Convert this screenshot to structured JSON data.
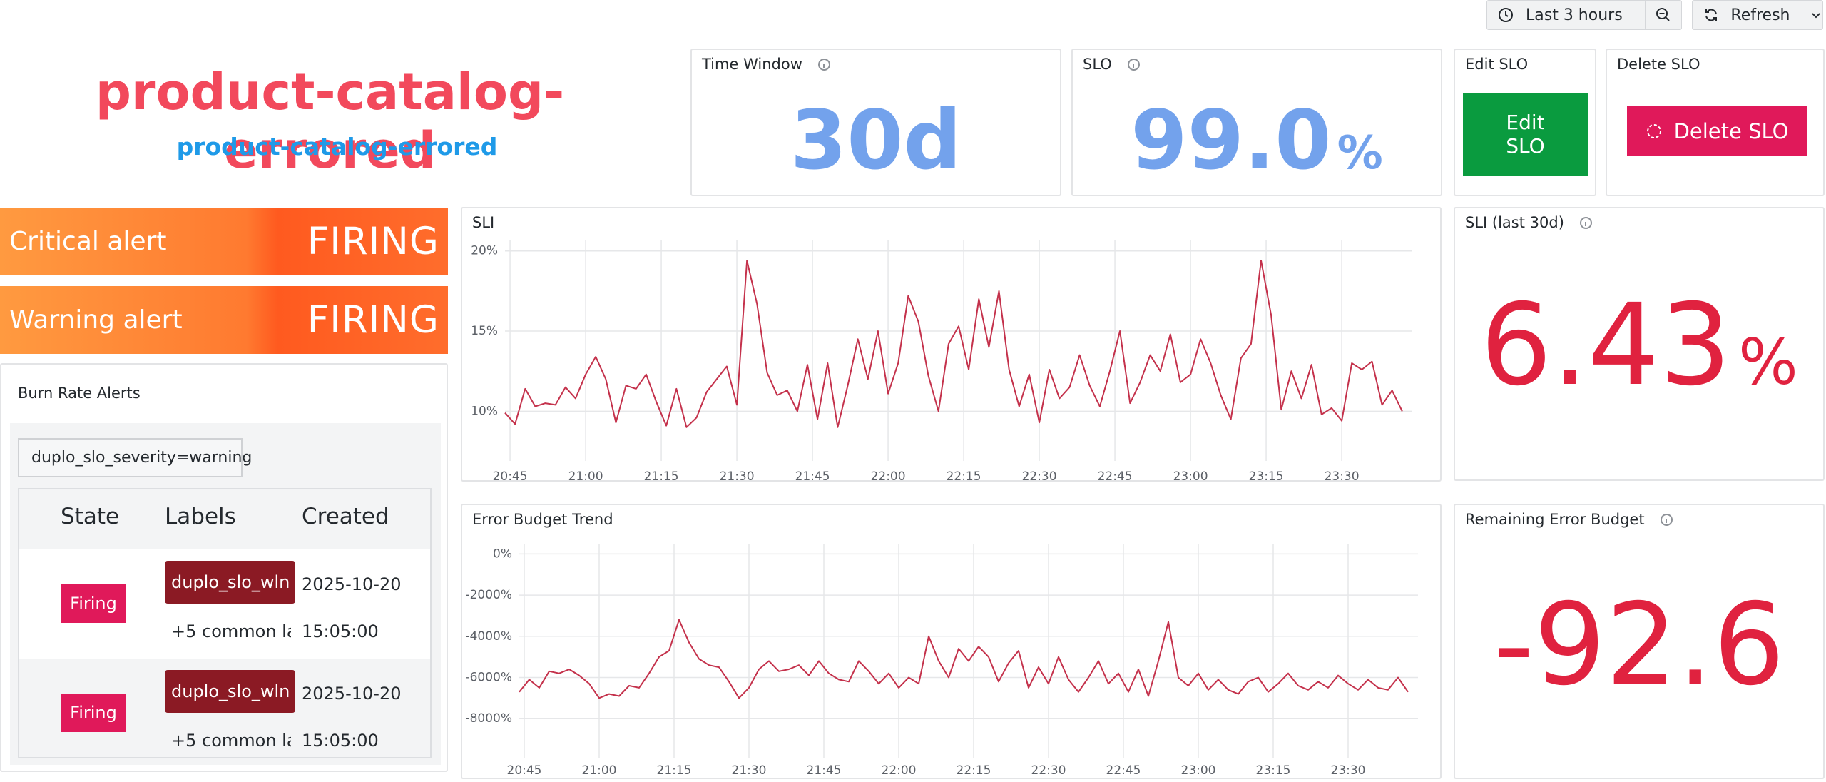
{
  "toolbar": {
    "time_range": "Last 3 hours",
    "refresh": "Refresh"
  },
  "header": {
    "title": "product-catalog-errored",
    "subtitle": "product-catalog-errored"
  },
  "stats": {
    "time_window": {
      "title": "Time Window",
      "value": "30d"
    },
    "slo": {
      "title": "SLO",
      "value": "99.0",
      "unit": "%"
    },
    "sli_30d": {
      "title": "SLI (last 30d)",
      "value": "6.43",
      "unit": "%"
    },
    "remaining_budget": {
      "title": "Remaining Error Budget",
      "value": "-92.6"
    }
  },
  "actions": {
    "edit": {
      "title": "Edit SLO",
      "button": "Edit SLO"
    },
    "delete": {
      "title": "Delete SLO",
      "button": "Delete SLO"
    }
  },
  "alerts": [
    {
      "label": "Critical alert",
      "status": "FIRING"
    },
    {
      "label": "Warning alert",
      "status": "FIRING"
    }
  ],
  "burn_rate": {
    "title": "Burn Rate Alerts",
    "filter": "duplo_slo_severity=warning",
    "columns": [
      "State",
      "Labels",
      "Created"
    ],
    "rows": [
      {
        "state": "Firing",
        "label": "duplo_slo_wln",
        "extra": "+5 common la",
        "date": "2025-10-20",
        "time": "15:05:00"
      },
      {
        "state": "Firing",
        "label": "duplo_slo_wln",
        "extra": "+5 common la",
        "date": "2025-10-20",
        "time": "15:05:00"
      }
    ]
  },
  "chart_data": [
    {
      "type": "line",
      "title": "SLI",
      "x": [
        "20:44",
        "20:46",
        "20:48",
        "20:50",
        "20:52",
        "20:54",
        "20:56",
        "20:58",
        "21:00",
        "21:02",
        "21:04",
        "21:06",
        "21:08",
        "21:10",
        "21:12",
        "21:14",
        "21:16",
        "21:18",
        "21:20",
        "21:22",
        "21:24",
        "21:26",
        "21:28",
        "21:30",
        "21:32",
        "21:34",
        "21:36",
        "21:38",
        "21:40",
        "21:42",
        "21:44",
        "21:46",
        "21:48",
        "21:50",
        "21:52",
        "21:54",
        "21:56",
        "21:58",
        "22:00",
        "22:02",
        "22:04",
        "22:06",
        "22:08",
        "22:10",
        "22:12",
        "22:14",
        "22:16",
        "22:18",
        "22:20",
        "22:22",
        "22:24",
        "22:26",
        "22:28",
        "22:30",
        "22:32",
        "22:34",
        "22:36",
        "22:38",
        "22:40",
        "22:42",
        "22:44",
        "22:46",
        "22:48",
        "22:50",
        "22:52",
        "22:54",
        "22:56",
        "22:58",
        "23:00",
        "23:02",
        "23:04",
        "23:06",
        "23:08",
        "23:10",
        "23:12",
        "23:14",
        "23:16",
        "23:18",
        "23:20",
        "23:22",
        "23:24",
        "23:26",
        "23:28",
        "23:30",
        "23:32",
        "23:34",
        "23:36",
        "23:38",
        "23:40",
        "23:42"
      ],
      "values": [
        9.9,
        9.2,
        11.4,
        10.3,
        10.5,
        10.4,
        11.5,
        10.8,
        12.3,
        13.4,
        12.0,
        9.3,
        11.6,
        11.4,
        12.3,
        10.6,
        9.1,
        11.4,
        9.0,
        9.6,
        11.2,
        12.0,
        12.8,
        10.4,
        19.4,
        16.7,
        12.4,
        11.0,
        11.3,
        10.0,
        12.9,
        9.5,
        13.0,
        9.0,
        11.6,
        14.5,
        12.0,
        15.0,
        11.1,
        13.0,
        17.2,
        15.6,
        12.2,
        10.0,
        14.2,
        15.3,
        12.6,
        17.0,
        14.0,
        17.5,
        12.6,
        10.3,
        12.3,
        9.3,
        12.6,
        10.8,
        11.5,
        13.5,
        11.6,
        10.3,
        12.5,
        15.0,
        10.5,
        11.8,
        13.5,
        12.5,
        14.8,
        11.8,
        12.3,
        14.5,
        13.0,
        11.0,
        9.5,
        13.3,
        14.2,
        19.4,
        16.0,
        10.1,
        12.5,
        10.8,
        12.9,
        9.8,
        10.2,
        9.4,
        13.0,
        12.6,
        13.1,
        10.4,
        11.3,
        10.0
      ],
      "color": "#c4314b",
      "xlim": [
        "20:44",
        "23:44"
      ],
      "xticks": [
        "20:45",
        "21:00",
        "21:15",
        "21:30",
        "21:45",
        "22:00",
        "22:15",
        "22:30",
        "22:45",
        "23:00",
        "23:15",
        "23:30"
      ],
      "ylim": [
        6.9,
        20.7
      ],
      "yticks": [
        {
          "value": 10,
          "label": "10%"
        },
        {
          "value": 15,
          "label": "15%"
        },
        {
          "value": 20,
          "label": "20%"
        }
      ],
      "grid": true
    },
    {
      "type": "line",
      "title": "Error Budget Trend",
      "x": [
        "20:44",
        "20:46",
        "20:48",
        "20:50",
        "20:52",
        "20:54",
        "20:56",
        "20:58",
        "21:00",
        "21:02",
        "21:04",
        "21:06",
        "21:08",
        "21:10",
        "21:12",
        "21:14",
        "21:16",
        "21:18",
        "21:20",
        "21:22",
        "21:24",
        "21:26",
        "21:28",
        "21:30",
        "21:32",
        "21:34",
        "21:36",
        "21:38",
        "21:40",
        "21:42",
        "21:44",
        "21:46",
        "21:48",
        "21:50",
        "21:52",
        "21:54",
        "21:56",
        "21:58",
        "22:00",
        "22:02",
        "22:04",
        "22:06",
        "22:08",
        "22:10",
        "22:12",
        "22:14",
        "22:16",
        "22:18",
        "22:20",
        "22:22",
        "22:24",
        "22:26",
        "22:28",
        "22:30",
        "22:32",
        "22:34",
        "22:36",
        "22:38",
        "22:40",
        "22:42",
        "22:44",
        "22:46",
        "22:48",
        "22:50",
        "22:52",
        "22:54",
        "22:56",
        "22:58",
        "23:00",
        "23:02",
        "23:04",
        "23:06",
        "23:08",
        "23:10",
        "23:12",
        "23:14",
        "23:16",
        "23:18",
        "23:20",
        "23:22",
        "23:24",
        "23:26",
        "23:28",
        "23:30",
        "23:32",
        "23:34",
        "23:36",
        "23:38",
        "23:40",
        "23:42"
      ],
      "values": [
        -6700,
        -6100,
        -6500,
        -5700,
        -5800,
        -5600,
        -5900,
        -6300,
        -7000,
        -6800,
        -6900,
        -6400,
        -6500,
        -5800,
        -5000,
        -4700,
        -3200,
        -4300,
        -5100,
        -5400,
        -5500,
        -6200,
        -7000,
        -6500,
        -5600,
        -5200,
        -5700,
        -5600,
        -5400,
        -5900,
        -5200,
        -5800,
        -6100,
        -6200,
        -5200,
        -5700,
        -6300,
        -5800,
        -6500,
        -6000,
        -6300,
        -4000,
        -5200,
        -6000,
        -4600,
        -5200,
        -4500,
        -5000,
        -6200,
        -5300,
        -4700,
        -6500,
        -5500,
        -6300,
        -5000,
        -6100,
        -6700,
        -6000,
        -5200,
        -6300,
        -5800,
        -6700,
        -5600,
        -6900,
        -5200,
        -3300,
        -6000,
        -6400,
        -5800,
        -6600,
        -6100,
        -6600,
        -6800,
        -6200,
        -6000,
        -6700,
        -6300,
        -5800,
        -6400,
        -6600,
        -6200,
        -6500,
        -5900,
        -6300,
        -6600,
        -6100,
        -6500,
        -6600,
        -6000,
        -6700
      ],
      "color": "#c4314b",
      "xlim": [
        "20:44",
        "23:44"
      ],
      "xticks": [
        "20:45",
        "21:00",
        "21:15",
        "21:30",
        "21:45",
        "22:00",
        "22:15",
        "22:30",
        "22:45",
        "23:00",
        "23:15",
        "23:30"
      ],
      "ylim": [
        -9900,
        500
      ],
      "yticks": [
        {
          "value": 0,
          "label": "0%"
        },
        {
          "value": -2000,
          "label": "-2000%"
        },
        {
          "value": -4000,
          "label": "-4000%"
        },
        {
          "value": -6000,
          "label": "-6000%"
        },
        {
          "value": -8000,
          "label": "-8000%"
        }
      ],
      "grid": true
    }
  ]
}
